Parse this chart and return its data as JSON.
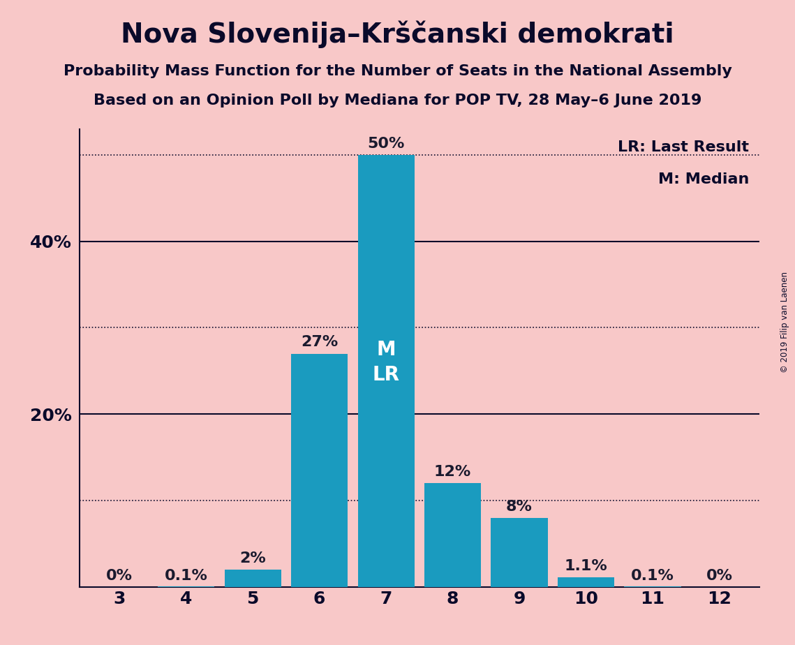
{
  "title": "Nova Slovenija–Krščanski demokrati",
  "subtitle1": "Probability Mass Function for the Number of Seats in the National Assembly",
  "subtitle2": "Based on an Opinion Poll by Mediana for POP TV, 28 May–6 June 2019",
  "copyright": "© 2019 Filip van Laenen",
  "categories": [
    3,
    4,
    5,
    6,
    7,
    8,
    9,
    10,
    11,
    12
  ],
  "values": [
    0.0,
    0.1,
    2.0,
    27.0,
    50.0,
    12.0,
    8.0,
    1.1,
    0.1,
    0.0
  ],
  "bar_color": "#1a9bbf",
  "background_color": "#f8c8c8",
  "label_color_inside": "#ffffff",
  "label_color_outside": "#1a1a2e",
  "median_seat": 7,
  "last_result_seat": 7,
  "ymax": 53,
  "dotted_lines": [
    10,
    30,
    50
  ],
  "solid_lines": [
    20,
    40
  ],
  "legend_lr": "LR: Last Result",
  "legend_m": "M: Median",
  "title_fontsize": 28,
  "subtitle_fontsize": 16,
  "axis_fontsize": 18,
  "bar_label_fontsize": 16,
  "inside_label_fontsize": 20,
  "spine_color": "#0a0a2a"
}
